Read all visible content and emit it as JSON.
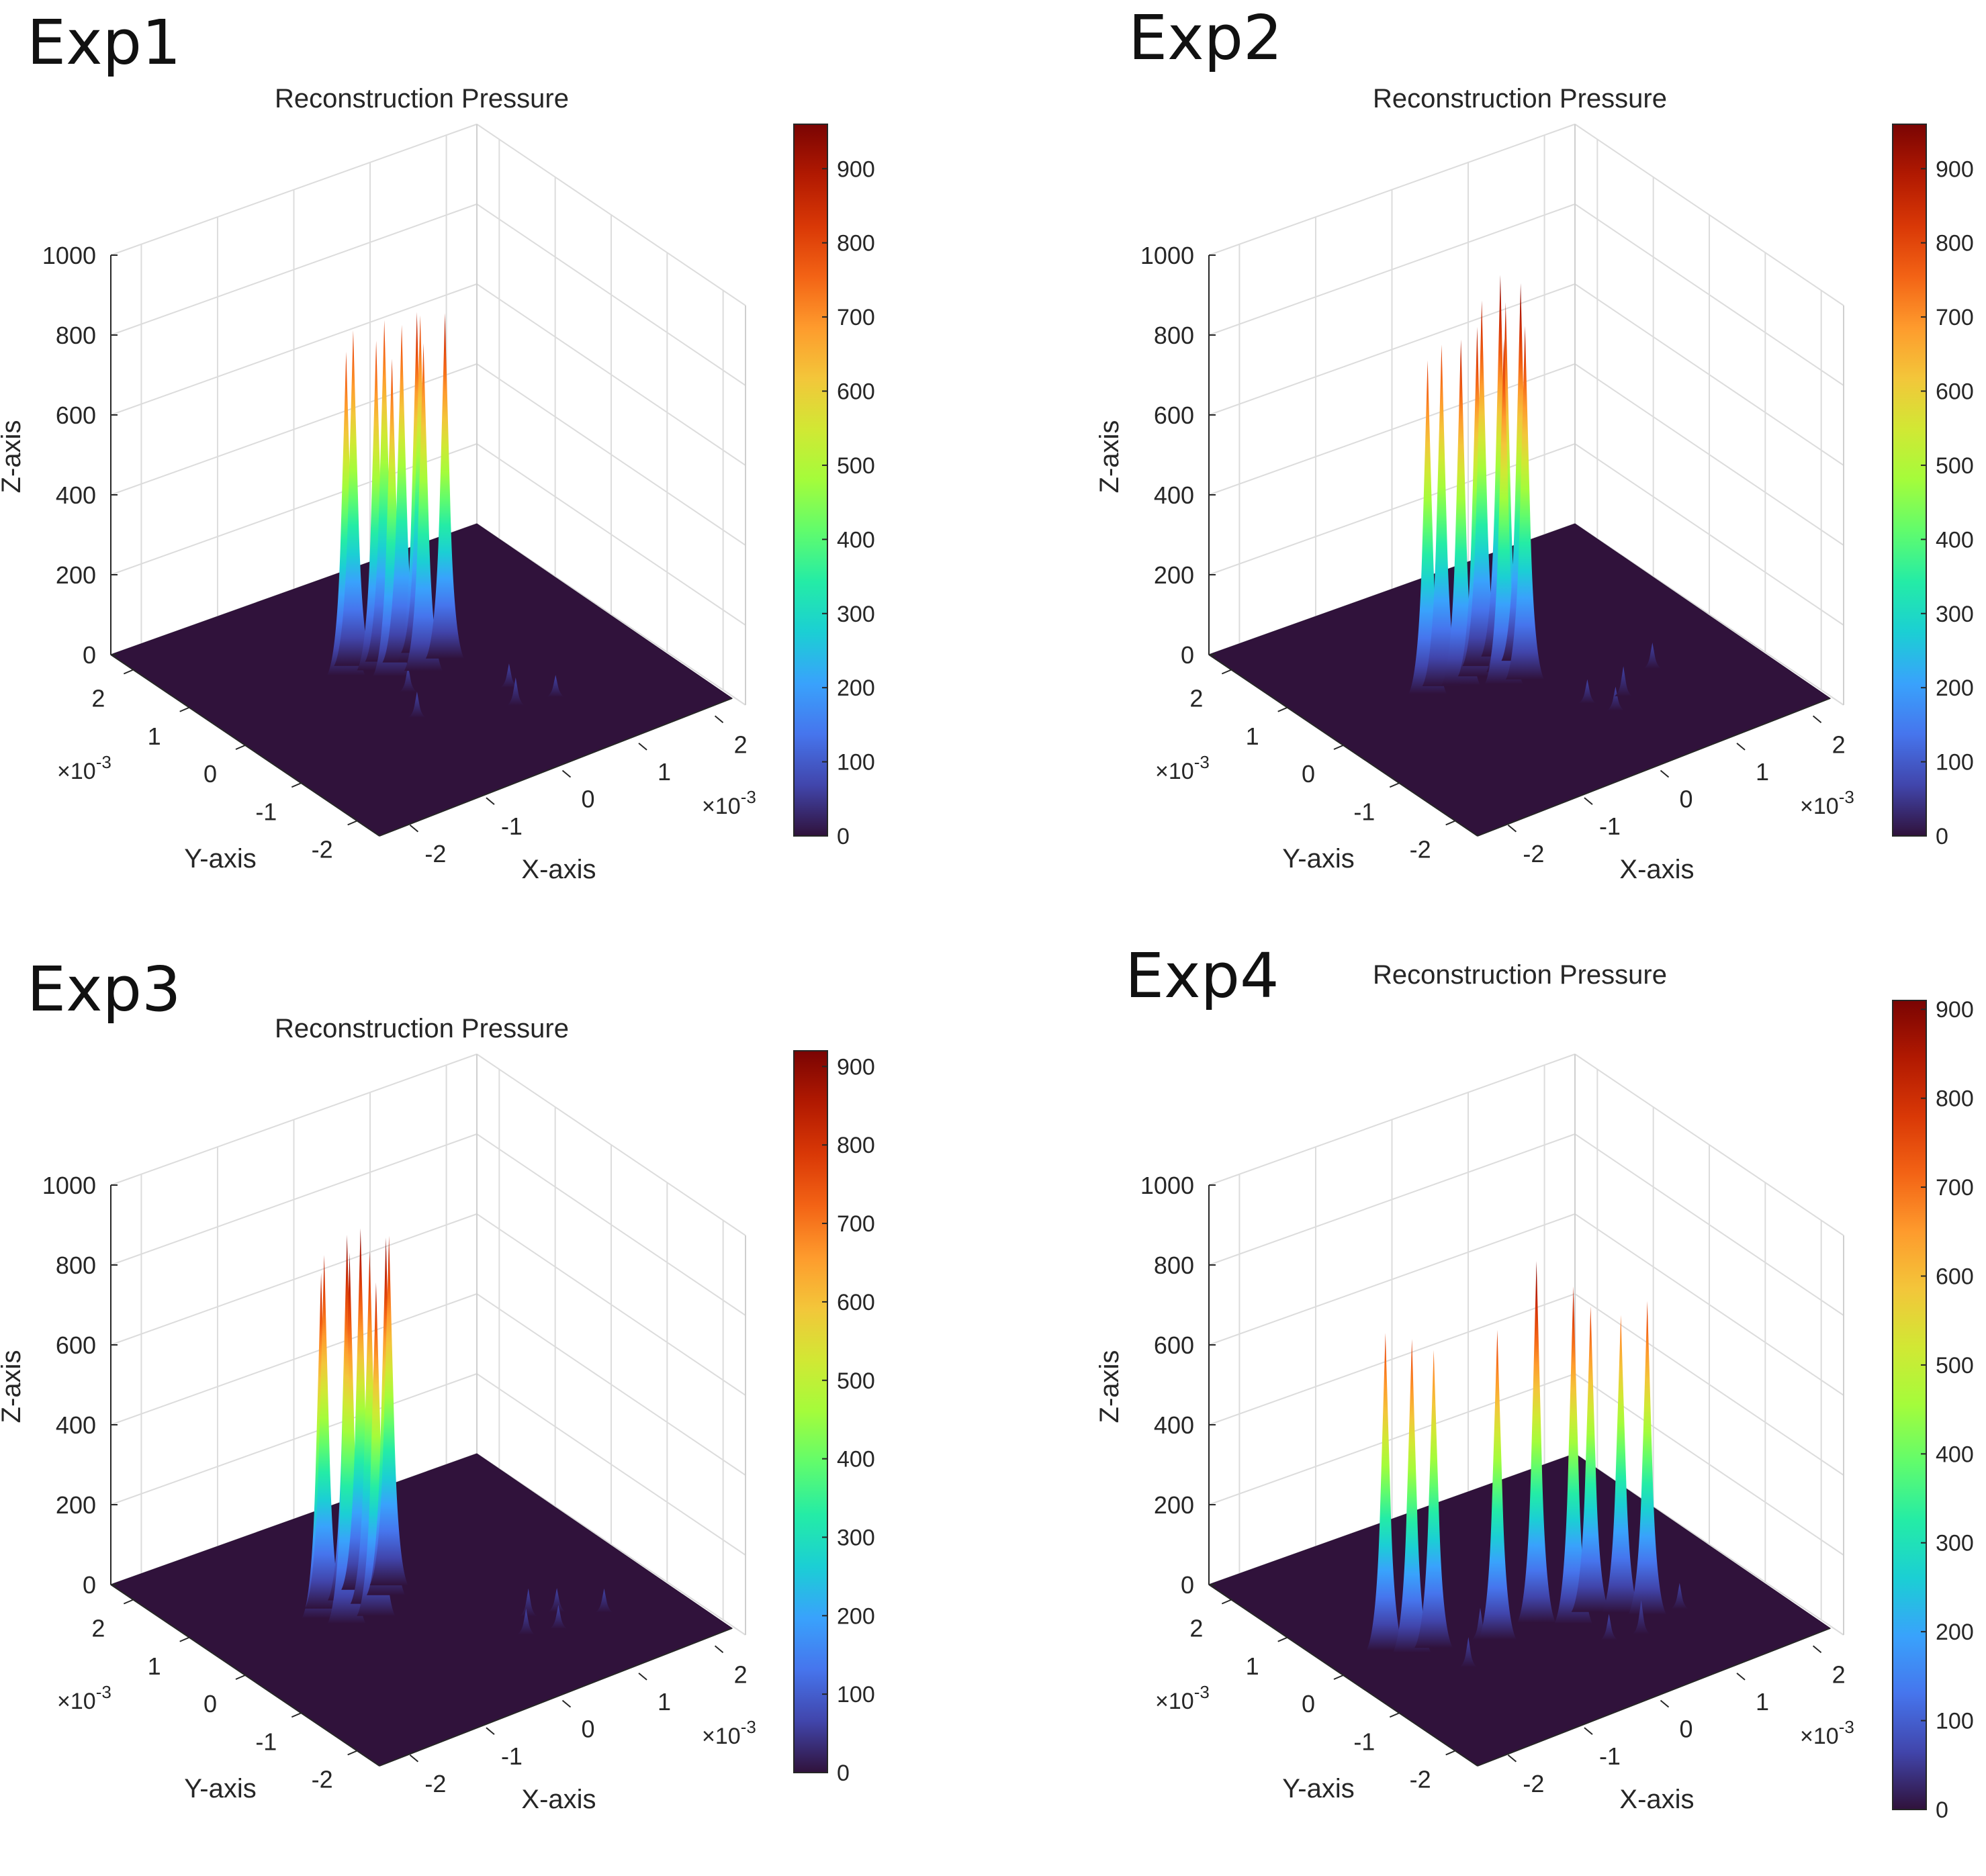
{
  "colormap": [
    "#30123b",
    "#4145ab",
    "#4675ed",
    "#39a2fc",
    "#1bcfd4",
    "#24eca6",
    "#61fc6c",
    "#a4fc3b",
    "#d1e834",
    "#f3c63a",
    "#fe9b2d",
    "#f36315",
    "#d93806",
    "#b11901",
    "#7a0403"
  ],
  "chart_data": [
    {
      "type": "surface3d",
      "panel_label": "Exp1",
      "title": "Reconstruction Pressure",
      "xlabel": "X-axis",
      "ylabel": "Y-axis",
      "zlabel": "Z-axis",
      "x_ticks": [
        "-2",
        "-1",
        "0",
        "1",
        "2"
      ],
      "y_ticks": [
        "2",
        "1",
        "0",
        "-1",
        "-2"
      ],
      "z_ticks": [
        "0",
        "200",
        "400",
        "600",
        "800",
        "1000"
      ],
      "x_exponent": "×10",
      "exponent_power": "-3",
      "xlim_scaled": [
        -2.4,
        2.4
      ],
      "ylim_scaled": [
        -2.4,
        2.4
      ],
      "zlim": [
        0,
        1000
      ],
      "colorbar_ticks": [
        "0",
        "100",
        "200",
        "300",
        "400",
        "500",
        "600",
        "700",
        "800",
        "900"
      ],
      "colorbar_range": [
        0,
        960
      ],
      "peaks": [
        {
          "x": -0.62,
          "y": 0.62,
          "z": 805
        },
        {
          "x": -0.44,
          "y": 0.74,
          "z": 835
        },
        {
          "x": -0.3,
          "y": 0.52,
          "z": 820
        },
        {
          "x": -0.12,
          "y": 0.62,
          "z": 850
        },
        {
          "x": 0.02,
          "y": 0.5,
          "z": 840
        },
        {
          "x": 0.16,
          "y": 0.42,
          "z": 870
        },
        {
          "x": 0.3,
          "y": 0.55,
          "z": 840
        },
        {
          "x": 0.44,
          "y": 0.3,
          "z": 860
        },
        {
          "x": -0.24,
          "y": 0.32,
          "z": 790
        },
        {
          "x": 0.1,
          "y": 0.22,
          "z": 815
        },
        {
          "x": 0.45,
          "y": -0.95,
          "z": 65
        },
        {
          "x": 0.62,
          "y": -0.6,
          "z": 55
        },
        {
          "x": -0.55,
          "y": -0.55,
          "z": 60
        },
        {
          "x": 0.9,
          "y": -1.05,
          "z": 50
        },
        {
          "x": -0.3,
          "y": -0.05,
          "z": 60
        }
      ]
    },
    {
      "type": "surface3d",
      "panel_label": "Exp2",
      "title": "Reconstruction Pressure",
      "xlabel": "X-axis",
      "ylabel": "Y-axis",
      "zlabel": "Z-axis",
      "x_ticks": [
        "-2",
        "-1",
        "0",
        "1",
        "2"
      ],
      "y_ticks": [
        "2",
        "1",
        "0",
        "-1",
        "-2"
      ],
      "z_ticks": [
        "0",
        "200",
        "400",
        "600",
        "800",
        "1000"
      ],
      "x_exponent": "×10",
      "exponent_power": "-3",
      "xlim_scaled": [
        -2.4,
        2.4
      ],
      "ylim_scaled": [
        -2.4,
        2.4
      ],
      "zlim": [
        0,
        1000
      ],
      "colorbar_ticks": [
        "0",
        "100",
        "200",
        "300",
        "400",
        "500",
        "600",
        "700",
        "800",
        "900"
      ],
      "colorbar_range": [
        0,
        960
      ],
      "peaks": [
        {
          "x": -1.0,
          "y": 0.4,
          "z": 830
        },
        {
          "x": -0.78,
          "y": 0.45,
          "z": 850
        },
        {
          "x": -0.6,
          "y": 0.35,
          "z": 860
        },
        {
          "x": -0.35,
          "y": 0.4,
          "z": 870
        },
        {
          "x": -0.18,
          "y": 0.55,
          "z": 910
        },
        {
          "x": -0.05,
          "y": 0.3,
          "z": 920
        },
        {
          "x": 0.1,
          "y": 0.6,
          "z": 950
        },
        {
          "x": 0.22,
          "y": 0.4,
          "z": 940
        },
        {
          "x": 0.02,
          "y": 0.05,
          "z": 880
        },
        {
          "x": -0.22,
          "y": 0.1,
          "z": 860
        },
        {
          "x": 0.65,
          "y": -0.85,
          "z": 70
        },
        {
          "x": 0.25,
          "y": -0.75,
          "z": 55
        },
        {
          "x": 0.4,
          "y": -1.05,
          "z": 55
        },
        {
          "x": 1.25,
          "y": -0.55,
          "z": 60
        }
      ]
    },
    {
      "type": "surface3d",
      "panel_label": "Exp3",
      "title": "Reconstruction Pressure",
      "xlabel": "X-axis",
      "ylabel": "Y-axis",
      "zlabel": "Z-axis",
      "x_ticks": [
        "-2",
        "-1",
        "0",
        "1",
        "2"
      ],
      "y_ticks": [
        "2",
        "1",
        "0",
        "-1",
        "-2"
      ],
      "z_ticks": [
        "0",
        "200",
        "400",
        "600",
        "800",
        "1000"
      ],
      "x_exponent": "×10",
      "exponent_power": "-3",
      "xlim_scaled": [
        -2.4,
        2.4
      ],
      "ylim_scaled": [
        -2.4,
        2.4
      ],
      "zlim": [
        0,
        1000
      ],
      "colorbar_ticks": [
        "0",
        "100",
        "200",
        "300",
        "400",
        "500",
        "600",
        "700",
        "800",
        "900"
      ],
      "colorbar_range": [
        0,
        920
      ],
      "peaks": [
        {
          "x": -1.0,
          "y": 0.55,
          "z": 860
        },
        {
          "x": -0.85,
          "y": 0.7,
          "z": 880
        },
        {
          "x": -0.7,
          "y": 0.45,
          "z": 900
        },
        {
          "x": -0.55,
          "y": 0.7,
          "z": 910
        },
        {
          "x": -0.4,
          "y": 0.5,
          "z": 880
        },
        {
          "x": -0.3,
          "y": 0.8,
          "z": 900
        },
        {
          "x": -0.15,
          "y": 0.55,
          "z": 890
        },
        {
          "x": 0.0,
          "y": 0.7,
          "z": 870
        },
        {
          "x": -0.85,
          "y": 0.3,
          "z": 820
        },
        {
          "x": -0.5,
          "y": 0.25,
          "z": 830
        },
        {
          "x": 0.55,
          "y": -1.0,
          "z": 60
        },
        {
          "x": 0.9,
          "y": -1.1,
          "z": 55
        },
        {
          "x": 0.8,
          "y": -0.7,
          "z": 65
        },
        {
          "x": 1.1,
          "y": -0.8,
          "z": 55
        },
        {
          "x": 1.5,
          "y": -1.1,
          "z": 55
        }
      ]
    },
    {
      "type": "surface3d",
      "panel_label": "Exp4",
      "title": "Reconstruction Pressure",
      "xlabel": "X-axis",
      "ylabel": "Y-axis",
      "zlabel": "Z-axis",
      "x_ticks": [
        "-2",
        "-1",
        "0",
        "1",
        "2"
      ],
      "y_ticks": [
        "2",
        "1",
        "0",
        "-1",
        "-2"
      ],
      "z_ticks": [
        "0",
        "200",
        "400",
        "600",
        "800",
        "1000"
      ],
      "x_exponent": "×10",
      "exponent_power": "-3",
      "xlim_scaled": [
        -2.4,
        2.4
      ],
      "ylim_scaled": [
        -2.4,
        2.4
      ],
      "zlim": [
        0,
        1000
      ],
      "colorbar_ticks": [
        "0",
        "100",
        "200",
        "300",
        "400",
        "500",
        "600",
        "700",
        "800",
        "900"
      ],
      "colorbar_range": [
        0,
        910
      ],
      "peaks": [
        {
          "x": -1.7,
          "y": 0.2,
          "z": 790
        },
        {
          "x": -1.5,
          "y": 0.0,
          "z": 780
        },
        {
          "x": -1.25,
          "y": -0.05,
          "z": 740
        },
        {
          "x": -0.6,
          "y": -0.3,
          "z": 770
        },
        {
          "x": -0.05,
          "y": -0.25,
          "z": 900
        },
        {
          "x": 0.25,
          "y": -0.5,
          "z": 840
        },
        {
          "x": 0.55,
          "y": -0.4,
          "z": 760
        },
        {
          "x": 0.8,
          "y": -0.6,
          "z": 740
        },
        {
          "x": 1.0,
          "y": -0.8,
          "z": 780
        },
        {
          "x": -1.2,
          "y": -0.6,
          "z": 70
        },
        {
          "x": -0.75,
          "y": -0.2,
          "z": 75
        },
        {
          "x": 0.7,
          "y": -1.1,
          "z": 80
        },
        {
          "x": 1.35,
          "y": -0.9,
          "z": 60
        },
        {
          "x": 0.35,
          "y": -1.0,
          "z": 60
        }
      ]
    }
  ]
}
